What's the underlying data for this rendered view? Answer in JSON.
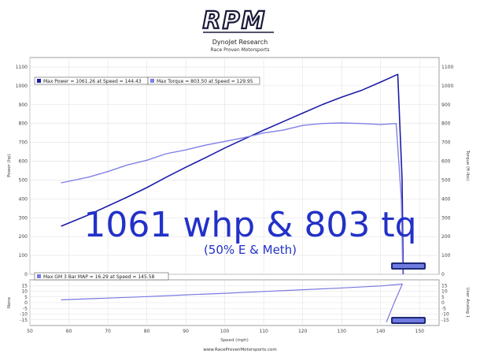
{
  "header": {
    "logo_text": "RPM",
    "title": "DynoJet Research",
    "subtitle": "Race Proven Motorsports"
  },
  "annotation": {
    "headline": "1061 whp & 803 tq",
    "note": "(50% E & Meth)"
  },
  "footer": {
    "url": "www.RaceProvenMotorsports.com"
  },
  "colors": {
    "power": "#1c1ca8",
    "torque": "#8080e6",
    "map": "#7a78e0",
    "accent": "#2231c8"
  },
  "chart_data": [
    {
      "type": "line",
      "ylabel": "Power (hp)",
      "y2label": "Torque (ft-lbs)",
      "xlim": [
        50,
        155
      ],
      "ylim": [
        0,
        1150
      ],
      "y_ticks": [
        0,
        100,
        200,
        300,
        400,
        500,
        600,
        700,
        800,
        900,
        1000,
        1100
      ],
      "legend": [
        "Max Power = 1061.26 at Speed = 144.43",
        "Max Torque = 803.50 at Speed = 129.95"
      ],
      "series": [
        {
          "name": "Power",
          "color": "#1c1ca8",
          "x": [
            58,
            65,
            70,
            75,
            80,
            85,
            90,
            95,
            100,
            105,
            110,
            115,
            120,
            125,
            130,
            135,
            140,
            144.4,
            145.5,
            145.8
          ],
          "y": [
            255,
            315,
            362,
            410,
            460,
            515,
            568,
            618,
            670,
            718,
            765,
            810,
            855,
            900,
            940,
            975,
            1020,
            1061,
            500,
            0
          ]
        },
        {
          "name": "Torque",
          "color": "#8080e6",
          "x": [
            58,
            65,
            70,
            75,
            80,
            85,
            90,
            95,
            100,
            105,
            110,
            115,
            120,
            125,
            130,
            135,
            140,
            144,
            145.3,
            145.7
          ],
          "y": [
            485,
            515,
            545,
            580,
            605,
            640,
            660,
            685,
            705,
            725,
            750,
            765,
            790,
            800,
            803,
            800,
            795,
            800,
            400,
            0
          ]
        }
      ]
    },
    {
      "type": "line",
      "xlabel": "Speed (mph)",
      "ylabel": "None",
      "y2label": "User Analog 1",
      "xlim": [
        50,
        155
      ],
      "ylim": [
        -20,
        20
      ],
      "x_ticks": [
        50,
        60,
        70,
        80,
        90,
        100,
        110,
        120,
        130,
        140,
        150
      ],
      "y_ticks": [
        -15,
        -10,
        -5,
        0,
        5,
        10,
        15
      ],
      "legend": [
        "Max GM 3 Bar MAP = 16.29 at Speed = 145.58"
      ],
      "series": [
        {
          "name": "GM 3 Bar MAP",
          "color": "#7a78e0",
          "x": [
            58,
            70,
            80,
            90,
            100,
            110,
            120,
            130,
            140,
            145.58,
            143.5,
            141.5
          ],
          "y": [
            2.5,
            4,
            5.3,
            6.8,
            8.2,
            9.8,
            11.3,
            12.9,
            14.6,
            16.29,
            0,
            -17
          ]
        }
      ]
    }
  ]
}
